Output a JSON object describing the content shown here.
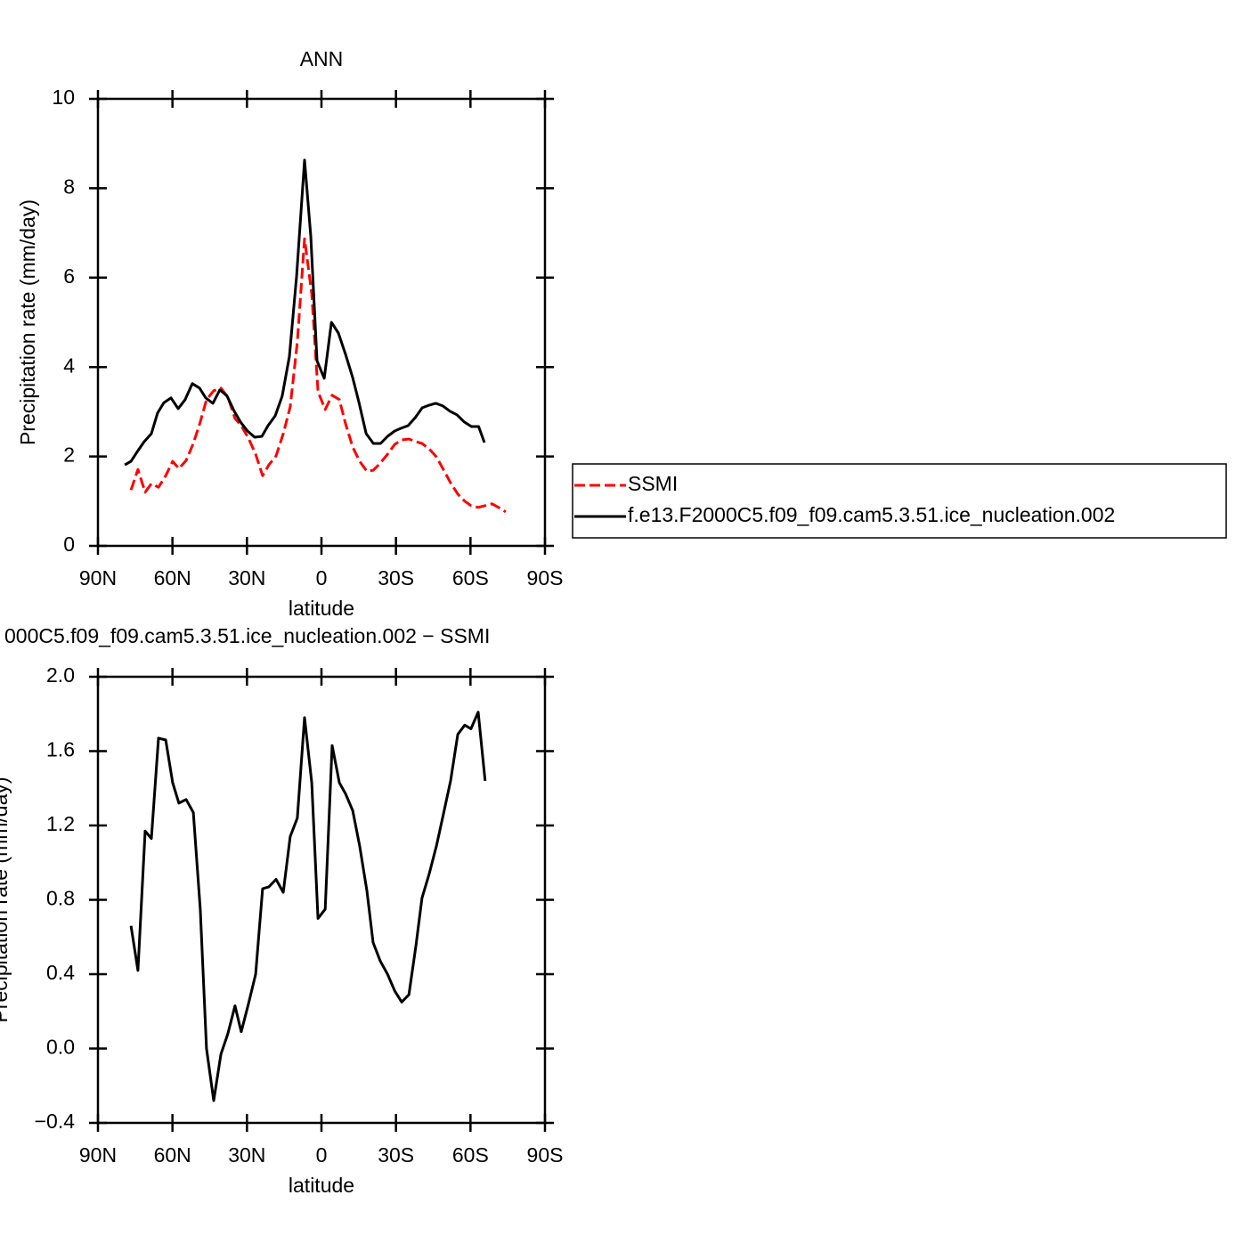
{
  "chart_data": [
    {
      "type": "line",
      "title": "ANN",
      "xlabel": "latitude",
      "ylabel": "Precipitation rate (mm/day)",
      "xlim": [
        90,
        -90
      ],
      "xticks": [
        {
          "value": 90,
          "label": "90N"
        },
        {
          "value": 60,
          "label": "60N"
        },
        {
          "value": 30,
          "label": "30N"
        },
        0,
        {
          "value": -30,
          "label": "30S"
        },
        {
          "value": -60,
          "label": "60S"
        },
        {
          "value": -90,
          "label": "90S"
        }
      ],
      "ylim": [
        0,
        10
      ],
      "yticks": [
        0,
        2,
        4,
        6,
        8,
        10
      ],
      "legend": "right",
      "series": [
        {
          "name": "SSMI",
          "color": "#ff0000",
          "dash": "dashed",
          "x": [
            76.7,
            73.9,
            71.0,
            68.5,
            65.6,
            62.7,
            59.9,
            57.4,
            54.5,
            51.6,
            48.8,
            46.3,
            43.4,
            40.5,
            37.7,
            34.8,
            32.3,
            29.4,
            26.5,
            23.7,
            21.2,
            18.3,
            15.4,
            12.6,
            9.7,
            6.8,
            3.9,
            1.4,
            -1.5,
            -4.3,
            -7.2,
            -9.7,
            -12.6,
            -15.4,
            -18.3,
            -20.8,
            -23.7,
            -26.6,
            -29.5,
            -32.3,
            -35.2,
            -38.0,
            -40.5,
            -43.4,
            -46.3,
            -49.1,
            -52.0,
            -54.9,
            -57.7,
            -60.2,
            -63.1,
            -65.9,
            -68.7,
            -71.3,
            -74.2
          ],
          "values": [
            1.25,
            1.71,
            1.2,
            1.39,
            1.31,
            1.57,
            1.89,
            1.73,
            1.91,
            2.29,
            2.77,
            3.27,
            3.47,
            3.53,
            3.33,
            2.85,
            2.69,
            2.41,
            2.05,
            1.57,
            1.81,
            2.01,
            2.51,
            3.11,
            4.56,
            6.87,
            5.64,
            3.45,
            3.05,
            3.37,
            3.27,
            2.73,
            2.21,
            1.89,
            1.67,
            1.69,
            1.85,
            2.05,
            2.27,
            2.37,
            2.39,
            2.33,
            2.29,
            2.17,
            1.99,
            1.71,
            1.41,
            1.16,
            1.0,
            0.9,
            0.86,
            0.9,
            0.94,
            0.86,
            0.76
          ]
        },
        {
          "name": "f.e13.F2000C5.f09_f09.cam5.3.51.ice_nucleation.002",
          "color": "#000000",
          "dash": "solid",
          "x": [
            79.2,
            76.7,
            73.9,
            71.4,
            68.5,
            66.0,
            63.5,
            60.6,
            57.7,
            54.9,
            52.0,
            49.1,
            46.6,
            43.7,
            40.9,
            38.0,
            35.1,
            32.6,
            29.8,
            26.9,
            24.0,
            21.5,
            18.6,
            15.8,
            12.9,
            10.0,
            6.8,
            4.3,
            1.8,
            -1.1,
            -4.0,
            -6.8,
            -9.7,
            -12.6,
            -15.1,
            -18.0,
            -20.9,
            -23.8,
            -26.6,
            -29.5,
            -32.0,
            -34.9,
            -37.8,
            -40.6,
            -43.5,
            -46.0,
            -48.9,
            -51.8,
            -54.6,
            -57.5,
            -60.4,
            -63.3,
            -65.6
          ],
          "values": [
            1.81,
            1.89,
            2.13,
            2.33,
            2.51,
            2.97,
            3.2,
            3.31,
            3.07,
            3.27,
            3.63,
            3.53,
            3.31,
            3.19,
            3.49,
            3.35,
            3.01,
            2.77,
            2.57,
            2.43,
            2.45,
            2.69,
            2.91,
            3.35,
            4.24,
            6.04,
            8.63,
            6.93,
            4.14,
            3.75,
            5.0,
            4.76,
            4.28,
            3.76,
            3.21,
            2.51,
            2.29,
            2.29,
            2.45,
            2.57,
            2.63,
            2.69,
            2.87,
            3.09,
            3.15,
            3.19,
            3.13,
            3.01,
            2.93,
            2.77,
            2.67,
            2.67,
            2.31
          ]
        }
      ]
    },
    {
      "type": "line",
      "title": "000C5.f09_f09.cam5.3.51.ice_nucleation.002 − SSMI",
      "xlabel": "latitude",
      "ylabel": "Precipitation rate (mm/day)",
      "xlim": [
        90,
        -90
      ],
      "xticks": [
        {
          "value": 90,
          "label": "90N"
        },
        {
          "value": 60,
          "label": "60N"
        },
        {
          "value": 30,
          "label": "30N"
        },
        0,
        {
          "value": -30,
          "label": "30S"
        },
        {
          "value": -60,
          "label": "60S"
        },
        {
          "value": -90,
          "label": "90S"
        }
      ],
      "ylim": [
        -0.4,
        2.0
      ],
      "yticks": [
        {
          "value": -0.4,
          "label": "−0.4"
        },
        {
          "value": 0,
          "label": "0.0"
        },
        0.4,
        0.8,
        1.2,
        1.6,
        {
          "value": 2.0,
          "label": "2.0"
        }
      ],
      "series": [
        {
          "color": "#000000",
          "dash": "solid",
          "x": [
            76.7,
            73.9,
            71.0,
            68.5,
            65.6,
            62.7,
            59.9,
            57.4,
            54.5,
            51.6,
            48.8,
            46.3,
            43.4,
            40.5,
            37.7,
            34.8,
            32.3,
            29.4,
            26.5,
            23.7,
            21.2,
            18.3,
            15.4,
            12.6,
            9.7,
            6.8,
            3.9,
            1.4,
            -1.5,
            -4.3,
            -7.2,
            -9.7,
            -12.6,
            -15.4,
            -18.3,
            -20.8,
            -23.7,
            -26.6,
            -29.5,
            -32.3,
            -35.2,
            -38.0,
            -40.5,
            -43.4,
            -46.3,
            -49.1,
            -52.0,
            -54.9,
            -57.7,
            -60.2,
            -63.1,
            -65.9
          ],
          "values": [
            0.66,
            0.42,
            1.17,
            1.13,
            1.67,
            1.66,
            1.43,
            1.32,
            1.34,
            1.27,
            0.75,
            0.0,
            -0.28,
            -0.03,
            0.08,
            0.23,
            0.09,
            0.24,
            0.4,
            0.86,
            0.87,
            0.91,
            0.84,
            1.14,
            1.24,
            1.78,
            1.43,
            0.7,
            0.75,
            1.63,
            1.43,
            1.37,
            1.28,
            1.09,
            0.85,
            0.57,
            0.47,
            0.4,
            0.31,
            0.25,
            0.29,
            0.55,
            0.81,
            0.94,
            1.09,
            1.26,
            1.44,
            1.69,
            1.74,
            1.72,
            1.81,
            1.44
          ]
        }
      ]
    }
  ]
}
